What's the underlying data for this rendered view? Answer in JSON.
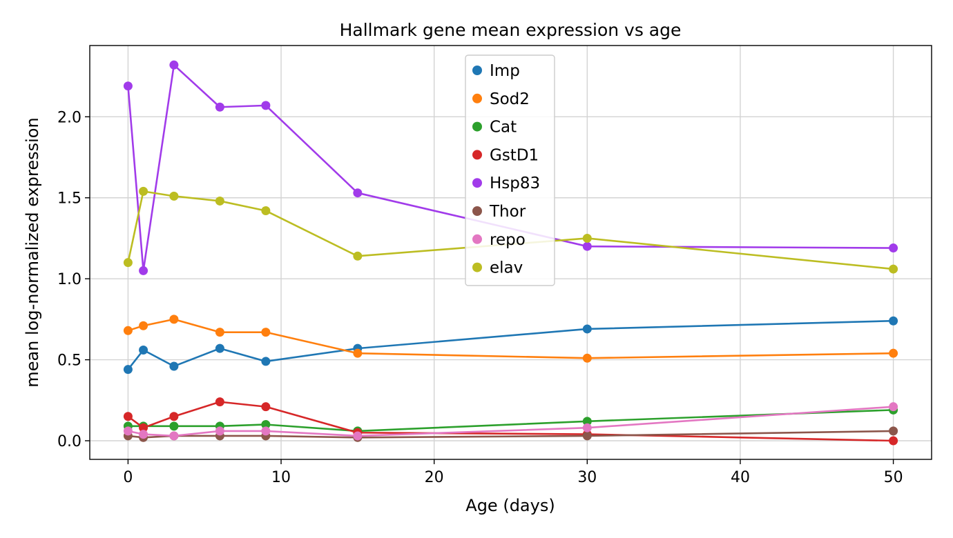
{
  "chart_data": {
    "type": "line",
    "title": "Hallmark gene mean expression vs age",
    "xlabel": "Age (days)",
    "ylabel": "mean log-normalized expression",
    "x": [
      0,
      1,
      3,
      6,
      9,
      15,
      30,
      50
    ],
    "xlim": [
      -2.5,
      52.5
    ],
    "ylim": [
      -0.115,
      2.44
    ],
    "xticks": [
      0,
      10,
      20,
      30,
      40,
      50
    ],
    "yticks": [
      0.0,
      0.5,
      1.0,
      1.5,
      2.0
    ],
    "xtick_labels": [
      "0",
      "10",
      "20",
      "30",
      "40",
      "50"
    ],
    "ytick_labels": [
      "0.0",
      "0.5",
      "1.0",
      "1.5",
      "2.0"
    ],
    "grid": true,
    "legend_position": "upper center",
    "series": [
      {
        "name": "Imp",
        "color": "#1f77b4",
        "values": [
          0.44,
          0.56,
          0.46,
          0.57,
          0.49,
          0.57,
          0.69,
          0.74
        ]
      },
      {
        "name": "Sod2",
        "color": "#ff7f0e",
        "values": [
          0.68,
          0.71,
          0.75,
          0.67,
          0.67,
          0.54,
          0.51,
          0.54
        ]
      },
      {
        "name": "Cat",
        "color": "#2ca02c",
        "values": [
          0.09,
          0.09,
          0.09,
          0.09,
          0.1,
          0.06,
          0.12,
          0.19
        ]
      },
      {
        "name": "GstD1",
        "color": "#d62728",
        "values": [
          0.15,
          0.08,
          0.15,
          0.24,
          0.21,
          0.05,
          0.04,
          0.0
        ]
      },
      {
        "name": "Hsp83",
        "color": "#a13bea",
        "values": [
          2.19,
          1.05,
          2.32,
          2.06,
          2.07,
          1.53,
          1.2,
          1.19
        ]
      },
      {
        "name": "Thor",
        "color": "#8c564b",
        "values": [
          0.03,
          0.02,
          0.03,
          0.03,
          0.03,
          0.02,
          0.03,
          0.06
        ]
      },
      {
        "name": "repo",
        "color": "#e377c2",
        "values": [
          0.06,
          0.04,
          0.03,
          0.06,
          0.06,
          0.03,
          0.08,
          0.21
        ]
      },
      {
        "name": "elav",
        "color": "#bcbd22",
        "values": [
          1.1,
          1.54,
          1.51,
          1.48,
          1.42,
          1.14,
          1.25,
          1.06
        ]
      }
    ]
  }
}
